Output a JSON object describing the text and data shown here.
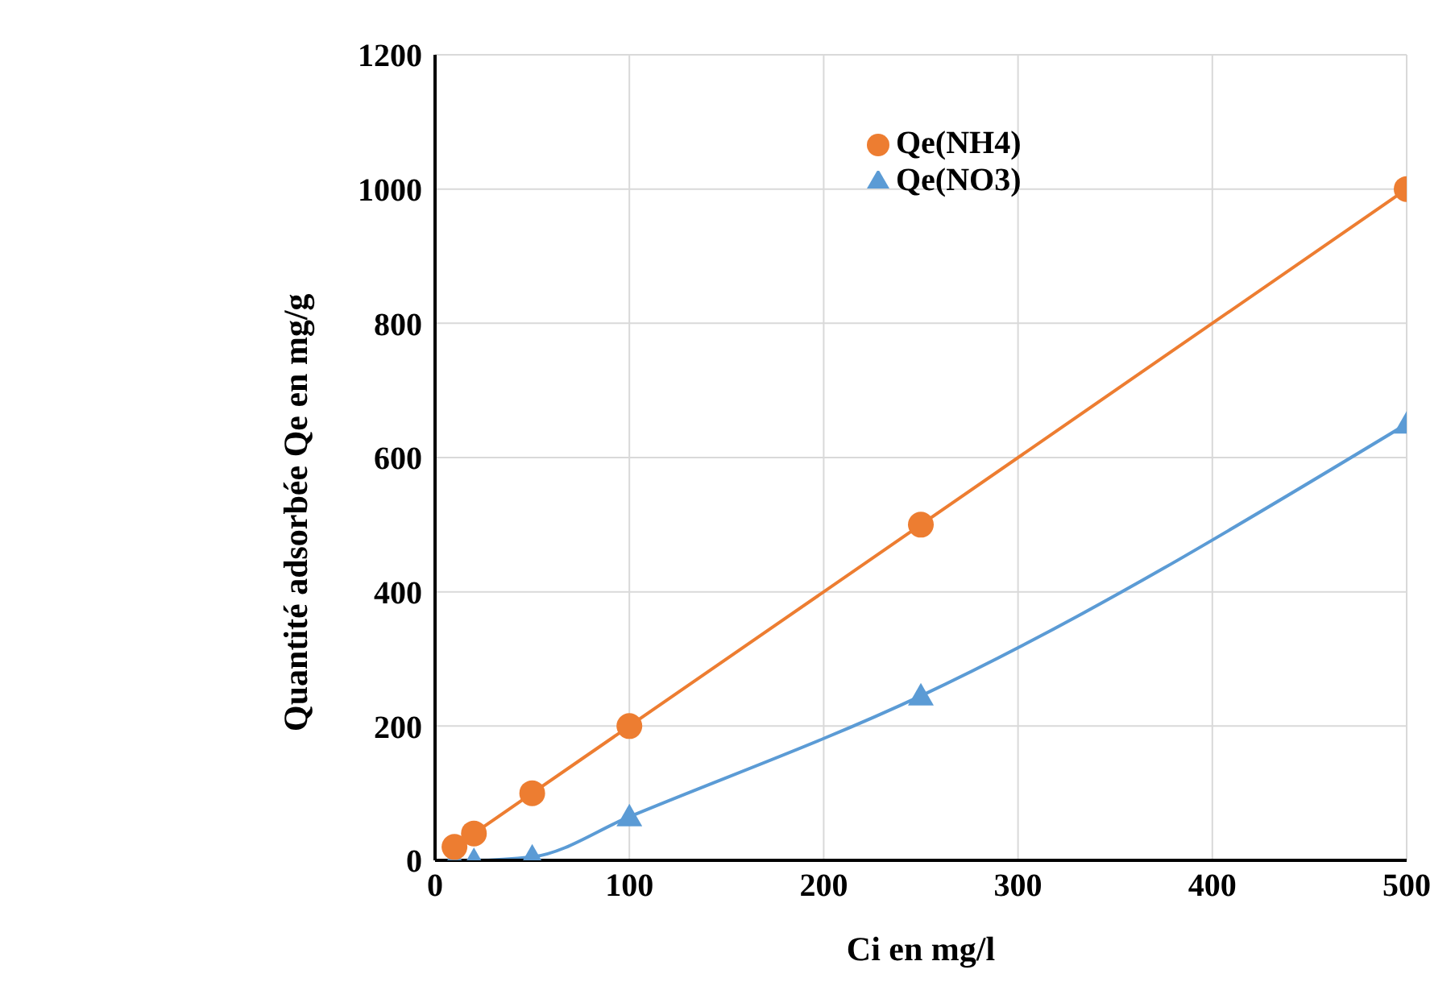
{
  "chart_data": {
    "type": "line",
    "xlabel": "Ci en mg/l",
    "ylabel": "Quantité adsorbée Qe en mg/g",
    "x": [
      10,
      20,
      50,
      100,
      250,
      500
    ],
    "series": [
      {
        "name": "Qe(NO3)",
        "color": "#5b9bd5",
        "marker": "triangle",
        "values": [
          0,
          0,
          5,
          65,
          245,
          650
        ]
      },
      {
        "name": "Qe(NH4)",
        "color": "#ed7d31",
        "marker": "circle",
        "values": [
          20,
          40,
          100,
          200,
          500,
          1000
        ]
      }
    ],
    "xlim": [
      0,
      500
    ],
    "xticks": [
      0,
      100,
      200,
      300,
      400,
      500
    ],
    "ylim": [
      0,
      1200
    ],
    "yticks": [
      0,
      200,
      400,
      600,
      800,
      1000,
      1200
    ],
    "grid": true,
    "legend": "top right"
  }
}
